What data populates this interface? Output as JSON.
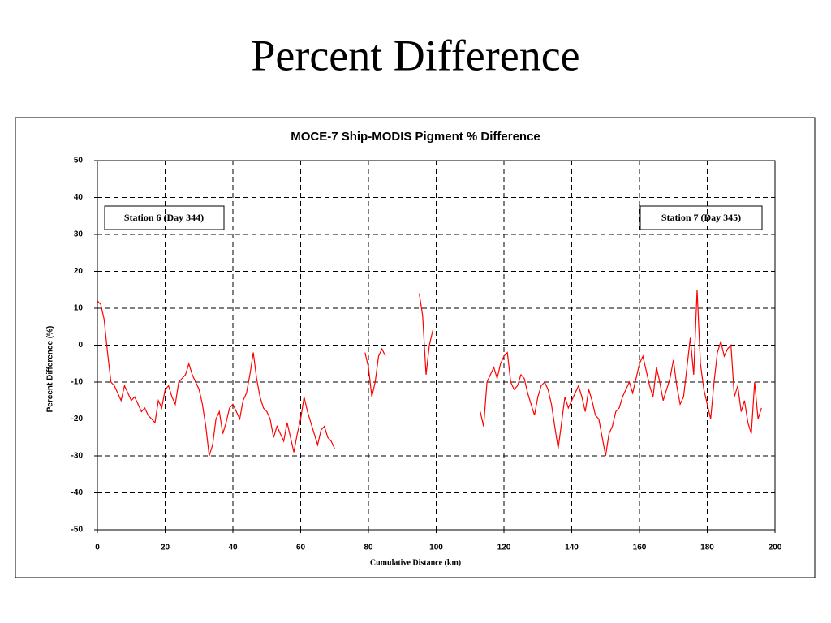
{
  "slide_title": "Percent Difference",
  "chart_data": {
    "type": "line",
    "title": "MOCE-7 Ship-MODIS Pigment % Difference",
    "xlabel": "Cumulative Distance (km)",
    "ylabel": "Percent Difference (%)",
    "annotations": [
      "Station 6 (Day 344)",
      "Station 7 (Day 345)"
    ],
    "xlim": [
      0,
      200
    ],
    "xticks": [
      0,
      20,
      40,
      60,
      80,
      100,
      120,
      140,
      160,
      180,
      200
    ],
    "ylim": [
      -50,
      50
    ],
    "yticks": [
      -50,
      -40,
      -30,
      -20,
      -10,
      0,
      10,
      20,
      30,
      40,
      50
    ],
    "grid": true,
    "x": [
      0,
      1,
      2,
      3,
      4,
      5,
      6,
      7,
      8,
      9,
      10,
      11,
      12,
      13,
      14,
      15,
      16,
      17,
      18,
      19,
      20,
      21,
      22,
      23,
      24,
      25,
      26,
      27,
      28,
      29,
      30,
      31,
      32,
      33,
      34,
      35,
      36,
      37,
      38,
      39,
      40,
      41,
      42,
      43,
      44,
      45,
      46,
      47,
      48,
      49,
      50,
      51,
      52,
      53,
      54,
      55,
      56,
      57,
      58,
      59,
      60,
      61,
      62,
      63,
      64,
      65,
      66,
      67,
      68,
      69,
      70,
      71,
      72,
      73,
      74,
      75,
      76,
      77,
      78,
      79,
      80,
      81,
      82,
      83,
      84,
      85,
      86,
      87,
      88,
      89,
      90,
      91,
      92,
      93,
      94,
      95,
      96,
      97,
      98,
      99,
      100,
      101,
      102,
      103,
      104,
      105,
      106,
      107,
      108,
      109,
      110,
      111,
      112,
      113,
      114,
      115,
      116,
      117,
      118,
      119,
      120,
      121,
      122,
      123,
      124,
      125,
      126,
      127,
      128,
      129,
      130,
      131,
      132,
      133,
      134,
      135,
      136,
      137,
      138,
      139,
      140,
      141,
      142,
      143,
      144,
      145,
      146,
      147,
      148,
      149,
      150,
      151,
      152,
      153,
      154,
      155,
      156,
      157,
      158,
      159,
      160,
      161,
      162,
      163,
      164,
      165,
      166,
      167,
      168,
      169,
      170,
      171,
      172,
      173,
      174,
      175,
      176,
      177,
      178,
      179,
      180,
      181,
      182,
      183,
      184,
      185,
      186,
      187,
      188,
      189,
      190,
      191,
      192,
      193,
      194,
      195,
      196
    ],
    "series": [
      {
        "name": "Pigment % Difference",
        "color": "#ff0000",
        "values": [
          12,
          11,
          7,
          -2,
          -10,
          -11,
          -13,
          -15,
          -11,
          -13,
          -15,
          -14,
          -16,
          -18,
          -17,
          -19,
          -20,
          -21,
          -15,
          -17,
          -12,
          -11,
          -14,
          -16,
          -10,
          -9,
          -8,
          -5,
          -8,
          -10,
          -12,
          -16,
          -22,
          -30,
          -27,
          -20,
          -18,
          -24,
          -21,
          -17,
          -16,
          -18,
          -20,
          -15,
          -13,
          -8,
          -2,
          -9,
          -14,
          -17,
          -18,
          -20,
          -25,
          -22,
          -24,
          -26,
          -21,
          -25,
          -29,
          -24,
          -20,
          -14,
          -18,
          -21,
          -24,
          -27,
          -23,
          -22,
          -25,
          -26,
          -28,
          null,
          null,
          null,
          null,
          null,
          null,
          null,
          null,
          -2,
          -6,
          -14,
          -10,
          -3,
          -1,
          -3,
          null,
          null,
          null,
          null,
          null,
          null,
          null,
          null,
          null,
          14,
          8,
          -8,
          0,
          4,
          null,
          null,
          null,
          null,
          null,
          null,
          null,
          null,
          null,
          null,
          null,
          null,
          null,
          -18,
          -22,
          -10,
          -8,
          -6,
          -9,
          -5,
          -3,
          -2,
          -10,
          -12,
          -11,
          -8,
          -9,
          -13,
          -16,
          -19,
          -14,
          -11,
          -10,
          -12,
          -16,
          -22,
          -28,
          -21,
          -14,
          -17,
          -15,
          -13,
          -11,
          -14,
          -18,
          -12,
          -15,
          -19,
          -20,
          -25,
          -30,
          -24,
          -22,
          -18,
          -17,
          -14,
          -12,
          -10,
          -13,
          -9,
          -5,
          -3,
          -7,
          -11,
          -14,
          -6,
          -10,
          -15,
          -12,
          -9,
          -4,
          -11,
          -16,
          -14,
          -6,
          2,
          -8,
          15,
          -5,
          -12,
          -16,
          -20,
          -10,
          -2,
          1,
          -3,
          -1,
          0,
          -14,
          -11,
          -18,
          -15,
          -21,
          -24,
          -10,
          -20,
          -17
        ]
      }
    ]
  }
}
